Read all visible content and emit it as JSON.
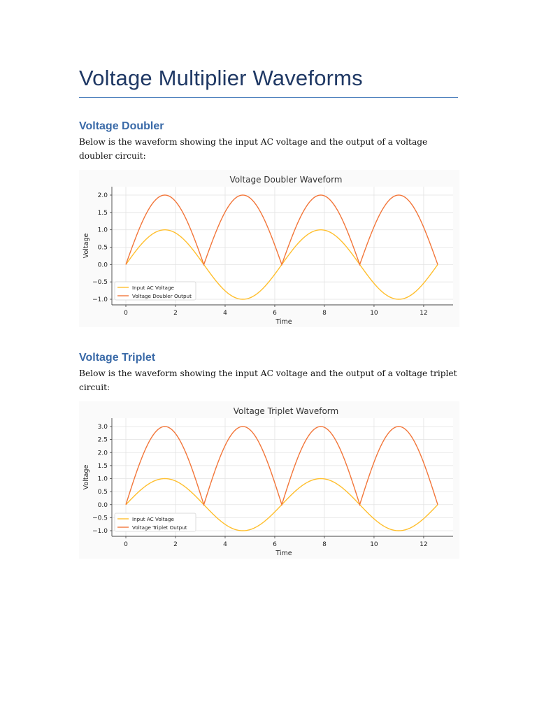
{
  "document": {
    "title": "Voltage Multiplier Waveforms"
  },
  "sections": [
    {
      "heading": "Voltage Doubler",
      "text": "Below is the waveform showing the input AC voltage and the output of a voltage doubler circuit:"
    },
    {
      "heading": "Voltage Triplet",
      "text": "Below is the waveform showing the input AC voltage and the output of a voltage triplet circuit:"
    }
  ],
  "colors": {
    "input": "#ffbf2e",
    "output": "#f2763a",
    "heading": "#3a6aa8",
    "title": "#1f3864",
    "rule": "#4f81bd"
  },
  "chart_data": [
    {
      "type": "line",
      "title": "Voltage Doubler Waveform",
      "xlabel": "Time",
      "ylabel": "Voltage",
      "xlim": [
        0,
        12.566
      ],
      "ylim": [
        -1.0,
        2.0
      ],
      "xticks": [
        0,
        2,
        4,
        6,
        8,
        10,
        12
      ],
      "yticks": [
        -1.0,
        -0.5,
        0.0,
        0.5,
        1.0,
        1.5,
        2.0
      ],
      "ytick_labels": [
        "−1.0",
        "−0.5",
        "0.0",
        "0.5",
        "1.0",
        "1.5",
        "2.0"
      ],
      "grid": true,
      "legend_position": "lower-left",
      "series": [
        {
          "name": "Input AC Voltage",
          "function": "sin(t)",
          "amplitude": 1,
          "color": "#ffbf2e"
        },
        {
          "name": "Voltage Doubler Output",
          "function": "2*|sin(t)|",
          "amplitude": 2,
          "color": "#f2763a"
        }
      ]
    },
    {
      "type": "line",
      "title": "Voltage Triplet Waveform",
      "xlabel": "Time",
      "ylabel": "Voltage",
      "xlim": [
        0,
        12.566
      ],
      "ylim": [
        -1.0,
        3.0
      ],
      "xticks": [
        0,
        2,
        4,
        6,
        8,
        10,
        12
      ],
      "yticks": [
        -1.0,
        -0.5,
        0.0,
        0.5,
        1.0,
        1.5,
        2.0,
        2.5,
        3.0
      ],
      "ytick_labels": [
        "−1.0",
        "−0.5",
        "0.0",
        "0.5",
        "1.0",
        "1.5",
        "2.0",
        "2.5",
        "3.0"
      ],
      "grid": true,
      "legend_position": "lower-left",
      "series": [
        {
          "name": "Input AC Voltage",
          "function": "sin(t)",
          "amplitude": 1,
          "color": "#ffbf2e"
        },
        {
          "name": "Voltage Triplet Output",
          "function": "3*|sin(t)|",
          "amplitude": 3,
          "color": "#f2763a"
        }
      ]
    }
  ]
}
